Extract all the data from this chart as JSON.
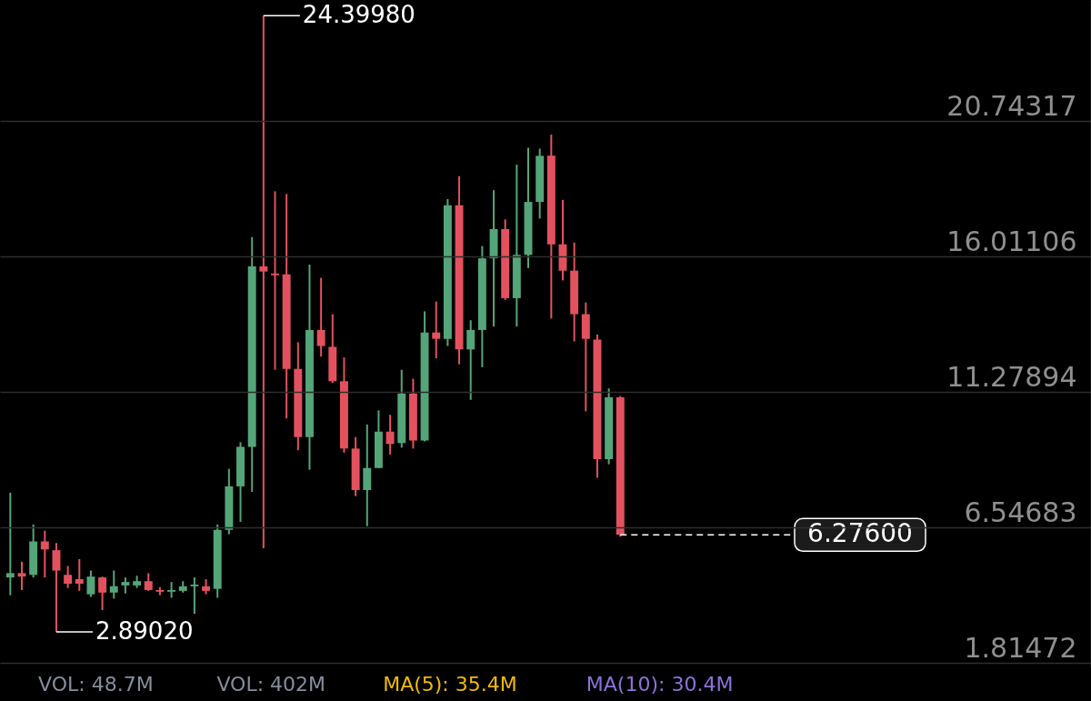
{
  "chart_data": {
    "type": "candlestick",
    "categories": [
      null,
      null,
      null,
      null,
      null,
      null,
      null,
      null,
      null,
      null,
      null,
      null,
      null,
      null,
      null,
      null,
      null,
      null,
      null,
      null,
      null,
      null,
      null,
      null,
      null,
      null,
      null,
      null,
      null,
      null,
      null,
      null,
      null,
      null,
      null,
      null,
      null,
      null,
      null,
      null,
      null,
      null,
      null,
      null,
      null,
      null,
      null,
      null,
      null,
      null,
      null,
      null,
      null,
      null,
      null,
      null,
      null,
      null,
      null,
      null,
      null,
      null,
      null,
      null,
      null,
      null,
      null,
      null,
      null,
      null,
      null,
      null,
      null,
      null,
      null,
      null,
      null,
      null,
      null,
      null,
      null,
      null,
      null,
      null,
      null,
      null,
      null,
      null,
      null,
      null,
      null,
      null,
      null,
      null
    ],
    "ohlc": [
      [
        4.79,
        7.75,
        4.17,
        4.94
      ],
      [
        4.94,
        5.34,
        4.35,
        4.82
      ],
      [
        4.88,
        6.64,
        4.79,
        6.05
      ],
      [
        6.05,
        6.42,
        4.79,
        5.77
      ],
      [
        5.74,
        5.99,
        2.8902,
        5.03
      ],
      [
        4.88,
        5.19,
        4.42,
        4.57
      ],
      [
        4.73,
        5.43,
        4.32,
        4.57
      ],
      [
        4.2,
        5.03,
        4.11,
        4.82
      ],
      [
        4.79,
        4.82,
        3.65,
        4.26
      ],
      [
        4.26,
        5.03,
        4.05,
        4.48
      ],
      [
        4.51,
        4.79,
        4.23,
        4.63
      ],
      [
        4.51,
        4.85,
        4.42,
        4.66
      ],
      [
        4.66,
        4.94,
        4.32,
        4.35
      ],
      [
        4.35,
        4.45,
        4.17,
        4.29
      ],
      [
        4.29,
        4.63,
        4.08,
        4.35
      ],
      [
        4.32,
        4.66,
        4.26,
        4.48
      ],
      [
        4.48,
        4.79,
        3.52,
        4.54
      ],
      [
        4.48,
        4.73,
        4.2,
        4.32
      ],
      [
        4.39,
        6.64,
        4.08,
        6.45
      ],
      [
        6.45,
        8.58,
        6.3,
        7.97
      ],
      [
        7.97,
        9.51,
        6.73,
        9.35
      ],
      [
        9.35,
        16.67,
        7.78,
        15.65
      ],
      [
        15.65,
        24.3998,
        5.81,
        15.47
      ],
      [
        15.4,
        18.27,
        12.04,
        15.34
      ],
      [
        15.37,
        18.18,
        10.34,
        12.07
      ],
      [
        12.07,
        13.0,
        9.23,
        9.69
      ],
      [
        9.69,
        15.71,
        8.55,
        13.43
      ],
      [
        13.43,
        15.25,
        12.5,
        12.87
      ],
      [
        12.84,
        13.98,
        11.58,
        11.64
      ],
      [
        11.64,
        12.47,
        9.14,
        9.29
      ],
      [
        9.29,
        9.69,
        7.63,
        7.84
      ],
      [
        7.84,
        10.13,
        6.58,
        8.61
      ],
      [
        8.61,
        10.62,
        8.61,
        9.88
      ],
      [
        9.88,
        10.47,
        9.08,
        9.45
      ],
      [
        9.48,
        12.04,
        9.32,
        11.21
      ],
      [
        11.21,
        11.73,
        9.29,
        9.57
      ],
      [
        9.57,
        14.08,
        9.54,
        13.34
      ],
      [
        13.34,
        14.42,
        12.44,
        13.12
      ],
      [
        13.12,
        18.0,
        12.87,
        17.78
      ],
      [
        17.78,
        18.8,
        12.23,
        12.75
      ],
      [
        12.75,
        13.77,
        10.99,
        13.43
      ],
      [
        13.43,
        16.36,
        12.13,
        15.93
      ],
      [
        15.93,
        18.31,
        13.55,
        16.95
      ],
      [
        16.95,
        17.29,
        14.48,
        14.54
      ],
      [
        14.54,
        19.2,
        13.55,
        16.05
      ],
      [
        16.05,
        19.79,
        15.59,
        17.9
      ],
      [
        17.9,
        19.76,
        17.32,
        19.51
      ],
      [
        19.51,
        20.25,
        13.83,
        16.42
      ],
      [
        16.42,
        17.97,
        15.16,
        15.5
      ],
      [
        15.5,
        16.48,
        13.03,
        13.98
      ],
      [
        13.98,
        14.39,
        10.59,
        13.12
      ],
      [
        13.09,
        13.27,
        8.27,
        8.92
      ],
      [
        8.92,
        11.39,
        8.74,
        11.08
      ],
      [
        11.08,
        11.12,
        6.21,
        6.276
      ],
      null,
      null,
      null,
      null,
      null,
      null,
      null,
      null,
      null,
      null,
      null,
      null,
      null,
      null,
      null,
      null,
      null,
      null,
      null,
      null,
      null,
      null,
      null,
      null,
      null,
      null,
      null,
      null,
      null,
      null,
      null,
      null,
      null,
      null,
      null,
      null,
      null,
      null,
      null,
      null
    ],
    "colors": [
      "#54a579",
      "#e2525e",
      "#54a579",
      "#e2525e",
      "#e2525e",
      "#e2525e",
      "#e2525e",
      "#54a579",
      "#e2525e",
      "#54a579",
      "#54a579",
      "#54a579",
      "#e2525e",
      "#e2525e",
      "#54a579",
      "#54a579",
      "#54a579",
      "#e2525e",
      "#54a579",
      "#54a579",
      "#54a579",
      "#54a579",
      "#e2525e",
      "#e2525e",
      "#e2525e",
      "#e2525e",
      "#54a579",
      "#e2525e",
      "#e2525e",
      "#e2525e",
      "#e2525e",
      "#54a579",
      "#54a579",
      "#e2525e",
      "#54a579",
      "#e2525e",
      "#54a579",
      "#e2525e",
      "#54a579",
      "#e2525e",
      "#54a579",
      "#54a579",
      "#54a579",
      "#e2525e",
      "#54a579",
      "#54a579",
      "#54a579",
      "#e2525e",
      "#e2525e",
      "#e2525e",
      "#e2525e",
      "#e2525e",
      "#54a579",
      "#e2525e",
      null,
      null,
      null,
      null,
      null,
      null,
      null,
      null,
      null,
      null,
      null,
      null,
      null,
      null,
      null,
      null,
      null,
      null,
      null,
      null,
      null,
      null,
      null,
      null,
      null,
      null,
      null,
      null,
      null,
      null,
      null,
      null,
      null,
      null,
      null,
      null,
      null,
      null,
      null,
      null
    ],
    "ylim": [
      1.65,
      24.95
    ],
    "yticks": [
      1.81472,
      6.54683,
      11.27894,
      16.01106,
      20.74317
    ],
    "grid": "y",
    "tick_labels": "y",
    "ref_lines": [
      {
        "axis": "y",
        "value": 6.276,
        "label": "6.27600",
        "line_style": "dashed",
        "color": "#ffffff"
      }
    ],
    "annotations": [
      "24.39980",
      "2.89020",
      "VOL: 48.7M",
      "VOL: 402M",
      "MA(5): 35.4M",
      "MA(10): 30.4M"
    ]
  }
}
